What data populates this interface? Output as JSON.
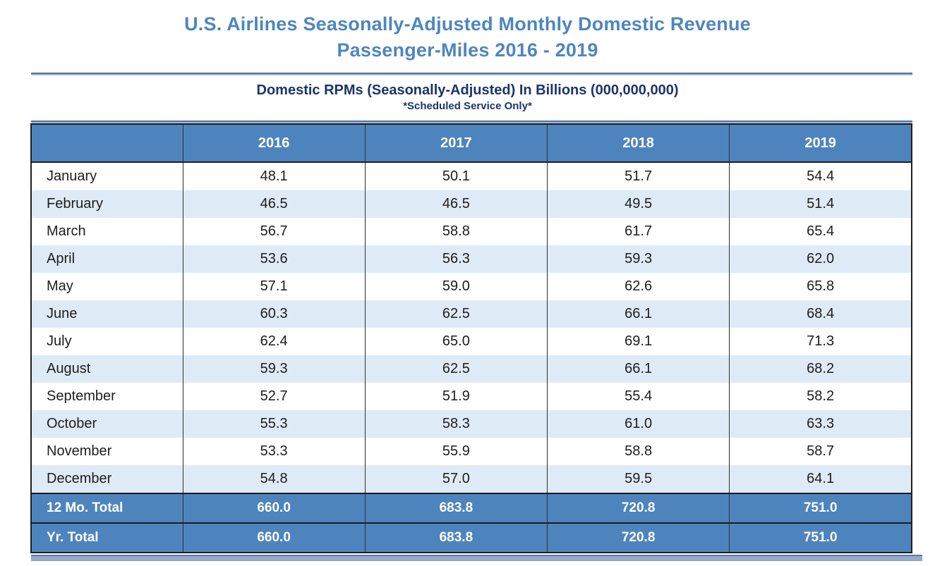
{
  "title": {
    "line1": "U.S. Airlines Seasonally-Adjusted Monthly Domestic Revenue",
    "line2": "Passenger-Miles 2016 - 2019"
  },
  "subtitle": "Domestic RPMs (Seasonally-Adjusted) In Billions (000,000,000)",
  "note": "*Scheduled Service Only*",
  "colors": {
    "title_blue": "#4E86BF",
    "header_blue": "#4E84BD",
    "stripe_blue": "#DEEBF7",
    "navy_text": "#1B356B",
    "divider_dark": "#53719E",
    "divider_light": "#A9BBD3",
    "bottom_strip": "#93AACA"
  },
  "table": {
    "columns": [
      "",
      "2016",
      "2017",
      "2018",
      "2019"
    ],
    "rows": [
      {
        "label": "January",
        "values": [
          "48.1",
          "50.1",
          "51.7",
          "54.4"
        ]
      },
      {
        "label": "February",
        "values": [
          "46.5",
          "46.5",
          "49.5",
          "51.4"
        ]
      },
      {
        "label": "March",
        "values": [
          "56.7",
          "58.8",
          "61.7",
          "65.4"
        ]
      },
      {
        "label": "April",
        "values": [
          "53.6",
          "56.3",
          "59.3",
          "62.0"
        ]
      },
      {
        "label": "May",
        "values": [
          "57.1",
          "59.0",
          "62.6",
          "65.8"
        ]
      },
      {
        "label": "June",
        "values": [
          "60.3",
          "62.5",
          "66.1",
          "68.4"
        ]
      },
      {
        "label": "July",
        "values": [
          "62.4",
          "65.0",
          "69.1",
          "71.3"
        ]
      },
      {
        "label": "August",
        "values": [
          "59.3",
          "62.5",
          "66.1",
          "68.2"
        ]
      },
      {
        "label": "September",
        "values": [
          "52.7",
          "51.9",
          "55.4",
          "58.2"
        ]
      },
      {
        "label": "October",
        "values": [
          "55.3",
          "58.3",
          "61.0",
          "63.3"
        ]
      },
      {
        "label": "November",
        "values": [
          "53.3",
          "55.9",
          "58.8",
          "58.7"
        ]
      },
      {
        "label": "December",
        "values": [
          "54.8",
          "57.0",
          "59.5",
          "64.1"
        ]
      }
    ],
    "totals": [
      {
        "label": "12 Mo. Total",
        "values": [
          "660.0",
          "683.8",
          "720.8",
          "751.0"
        ]
      },
      {
        "label": "Yr. Total",
        "values": [
          "660.0",
          "683.8",
          "720.8",
          "751.0"
        ]
      }
    ]
  },
  "chart_data": {
    "type": "table",
    "title": "Domestic RPMs (Seasonally-Adjusted) In Billions (000,000,000)",
    "categories": [
      "January",
      "February",
      "March",
      "April",
      "May",
      "June",
      "July",
      "August",
      "September",
      "October",
      "November",
      "December"
    ],
    "series": [
      {
        "name": "2016",
        "values": [
          48.1,
          46.5,
          56.7,
          53.6,
          57.1,
          60.3,
          62.4,
          59.3,
          52.7,
          55.3,
          53.3,
          54.8
        ],
        "total": 660.0
      },
      {
        "name": "2017",
        "values": [
          50.1,
          46.5,
          58.8,
          56.3,
          59.0,
          62.5,
          65.0,
          62.5,
          51.9,
          58.3,
          55.9,
          57.0
        ],
        "total": 683.8
      },
      {
        "name": "2018",
        "values": [
          51.7,
          49.5,
          61.7,
          59.3,
          62.6,
          66.1,
          69.1,
          66.1,
          55.4,
          61.0,
          58.8,
          59.5
        ],
        "total": 720.8
      },
      {
        "name": "2019",
        "values": [
          54.4,
          51.4,
          65.4,
          62.0,
          65.8,
          68.4,
          71.3,
          68.2,
          58.2,
          63.3,
          58.7,
          64.1
        ],
        "total": 751.0
      }
    ]
  }
}
